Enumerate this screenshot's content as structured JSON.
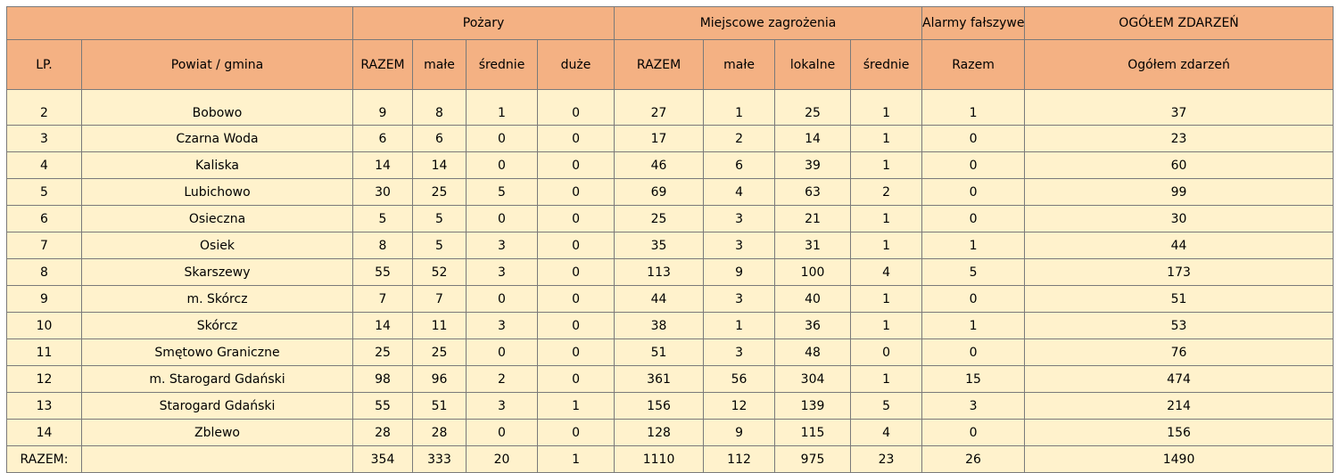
{
  "header": {
    "group_pozary": "Pożary",
    "group_miejscowe": "Miejscowe zagrożenia",
    "group_alarmy": "Alarmy fałszywe",
    "group_ogolem": "OGÓŁEM ZDARZEŃ",
    "col_lp": "LP.",
    "col_powiat": "Powiat / gmina",
    "col_p_razem": "RAZEM",
    "col_p_male": "małe",
    "col_p_srednie": "średnie",
    "col_p_duze": "duże",
    "col_m_razem": "RAZEM",
    "col_m_male": "małe",
    "col_m_lokalne": "lokalne",
    "col_m_srednie": "średnie",
    "col_a_razem": "Razem",
    "col_ogolem": "Ogółem zdarzeń"
  },
  "rows": [
    {
      "lp": "2",
      "name": "Bobowo",
      "p_razem": "9",
      "p_male": "8",
      "p_srednie": "1",
      "p_duze": "0",
      "m_razem": "27",
      "m_male": "1",
      "m_lokalne": "25",
      "m_srednie": "1",
      "a_razem": "1",
      "ogolem": "37"
    },
    {
      "lp": "3",
      "name": "Czarna Woda",
      "p_razem": "6",
      "p_male": "6",
      "p_srednie": "0",
      "p_duze": "0",
      "m_razem": "17",
      "m_male": "2",
      "m_lokalne": "14",
      "m_srednie": "1",
      "a_razem": "0",
      "ogolem": "23"
    },
    {
      "lp": "4",
      "name": "Kaliska",
      "p_razem": "14",
      "p_male": "14",
      "p_srednie": "0",
      "p_duze": "0",
      "m_razem": "46",
      "m_male": "6",
      "m_lokalne": "39",
      "m_srednie": "1",
      "a_razem": "0",
      "ogolem": "60"
    },
    {
      "lp": "5",
      "name": "Lubichowo",
      "p_razem": "30",
      "p_male": "25",
      "p_srednie": "5",
      "p_duze": "0",
      "m_razem": "69",
      "m_male": "4",
      "m_lokalne": "63",
      "m_srednie": "2",
      "a_razem": "0",
      "ogolem": "99"
    },
    {
      "lp": "6",
      "name": "Osieczna",
      "p_razem": "5",
      "p_male": "5",
      "p_srednie": "0",
      "p_duze": "0",
      "m_razem": "25",
      "m_male": "3",
      "m_lokalne": "21",
      "m_srednie": "1",
      "a_razem": "0",
      "ogolem": "30"
    },
    {
      "lp": "7",
      "name": "Osiek",
      "p_razem": "8",
      "p_male": "5",
      "p_srednie": "3",
      "p_duze": "0",
      "m_razem": "35",
      "m_male": "3",
      "m_lokalne": "31",
      "m_srednie": "1",
      "a_razem": "1",
      "ogolem": "44"
    },
    {
      "lp": "8",
      "name": "Skarszewy",
      "p_razem": "55",
      "p_male": "52",
      "p_srednie": "3",
      "p_duze": "0",
      "m_razem": "113",
      "m_male": "9",
      "m_lokalne": "100",
      "m_srednie": "4",
      "a_razem": "5",
      "ogolem": "173"
    },
    {
      "lp": "9",
      "name": "m. Skórcz",
      "p_razem": "7",
      "p_male": "7",
      "p_srednie": "0",
      "p_duze": "0",
      "m_razem": "44",
      "m_male": "3",
      "m_lokalne": "40",
      "m_srednie": "1",
      "a_razem": "0",
      "ogolem": "51"
    },
    {
      "lp": "10",
      "name": "Skórcz",
      "p_razem": "14",
      "p_male": "11",
      "p_srednie": "3",
      "p_duze": "0",
      "m_razem": "38",
      "m_male": "1",
      "m_lokalne": "36",
      "m_srednie": "1",
      "a_razem": "1",
      "ogolem": "53"
    },
    {
      "lp": "11",
      "name": "Smętowo Graniczne",
      "p_razem": "25",
      "p_male": "25",
      "p_srednie": "0",
      "p_duze": "0",
      "m_razem": "51",
      "m_male": "3",
      "m_lokalne": "48",
      "m_srednie": "0",
      "a_razem": "0",
      "ogolem": "76"
    },
    {
      "lp": "12",
      "name": "m. Starogard Gdański",
      "p_razem": "98",
      "p_male": "96",
      "p_srednie": "2",
      "p_duze": "0",
      "m_razem": "361",
      "m_male": "56",
      "m_lokalne": "304",
      "m_srednie": "1",
      "a_razem": "15",
      "ogolem": "474"
    },
    {
      "lp": "13",
      "name": "Starogard Gdański",
      "p_razem": "55",
      "p_male": "51",
      "p_srednie": "3",
      "p_duze": "1",
      "m_razem": "156",
      "m_male": "12",
      "m_lokalne": "139",
      "m_srednie": "5",
      "a_razem": "3",
      "ogolem": "214"
    },
    {
      "lp": "14",
      "name": "Zblewo",
      "p_razem": "28",
      "p_male": "28",
      "p_srednie": "0",
      "p_duze": "0",
      "m_razem": "128",
      "m_male": "9",
      "m_lokalne": "115",
      "m_srednie": "4",
      "a_razem": "0",
      "ogolem": "156"
    }
  ],
  "totals": {
    "label": "RAZEM:",
    "name": "",
    "p_razem": "354",
    "p_male": "333",
    "p_srednie": "20",
    "p_duze": "1",
    "m_razem": "1110",
    "m_male": "112",
    "m_lokalne": "975",
    "m_srednie": "23",
    "a_razem": "26",
    "ogolem": "1490"
  }
}
